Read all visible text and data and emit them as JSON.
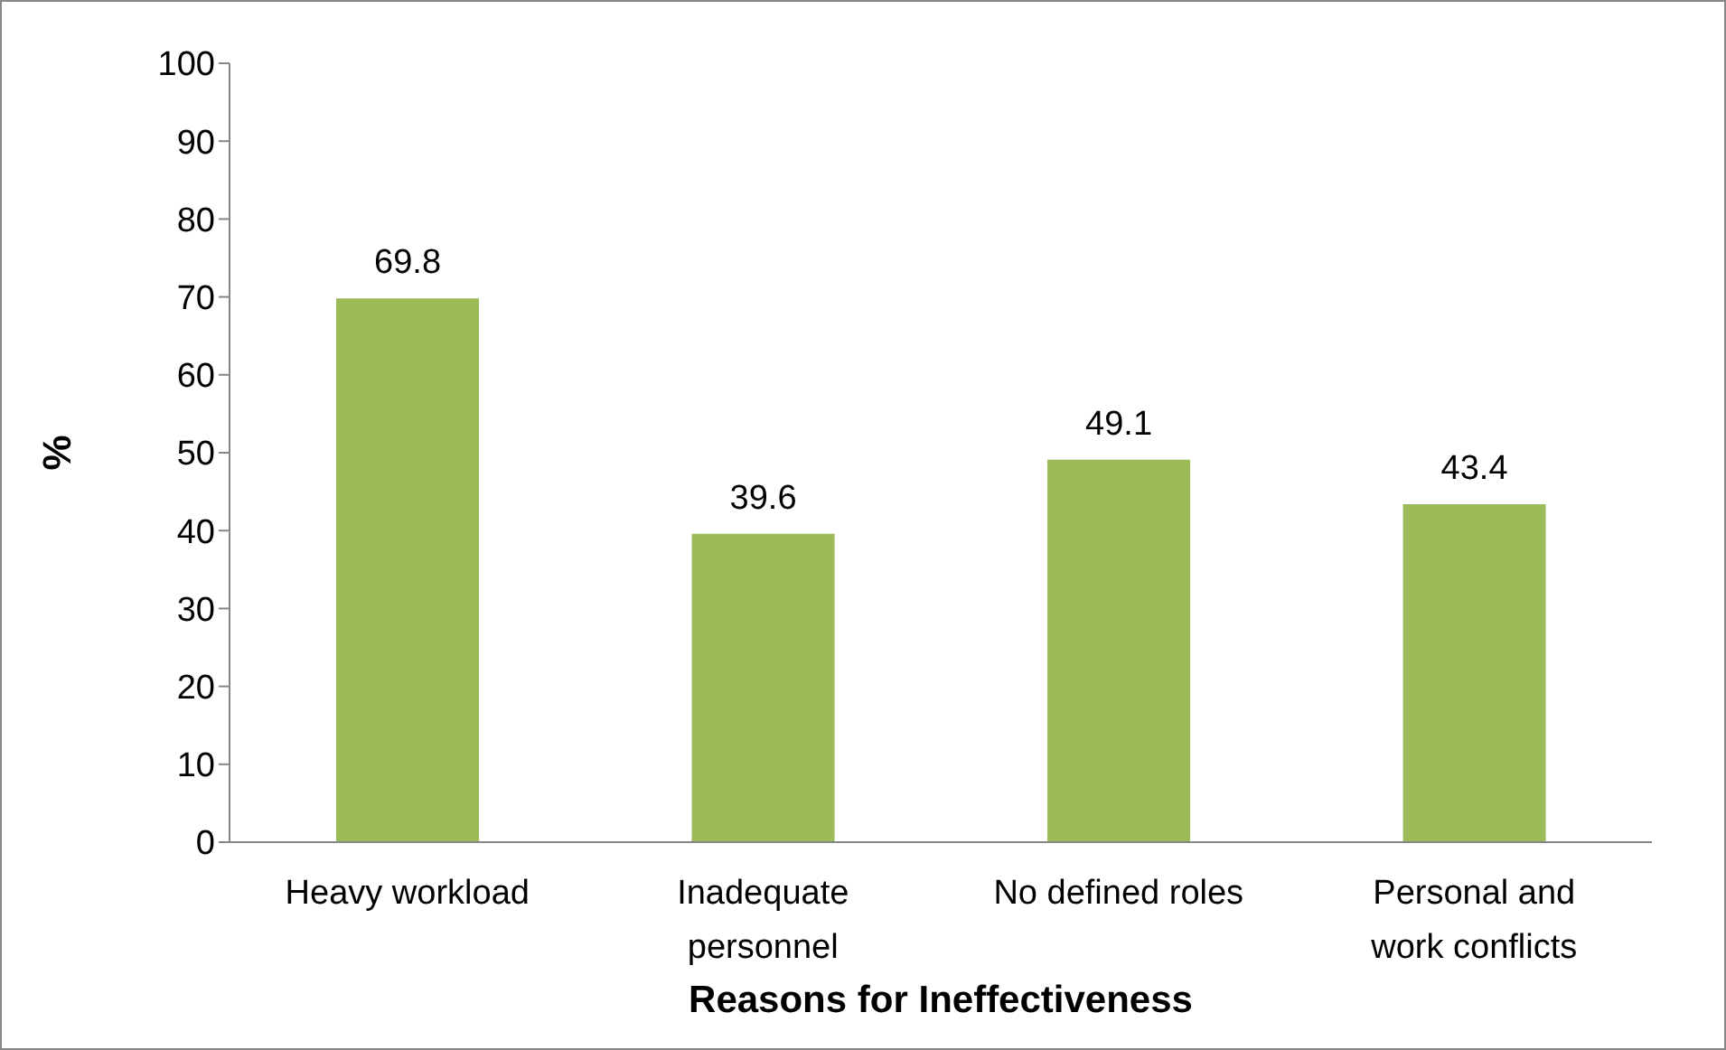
{
  "chart_data": {
    "type": "bar",
    "xlabel": "Reasons for Ineffectiveness",
    "ylabel": "%",
    "categories": [
      "Heavy workload",
      "Inadequate personnel",
      "No defined roles",
      "Personal and work conflicts"
    ],
    "values": [
      69.8,
      39.6,
      49.1,
      43.4
    ],
    "color": "#9bbb59",
    "ylim": [
      0,
      100
    ],
    "yticks": [
      0,
      10,
      20,
      30,
      40,
      50,
      60,
      70,
      80,
      90,
      100
    ],
    "data_labels": true
  }
}
